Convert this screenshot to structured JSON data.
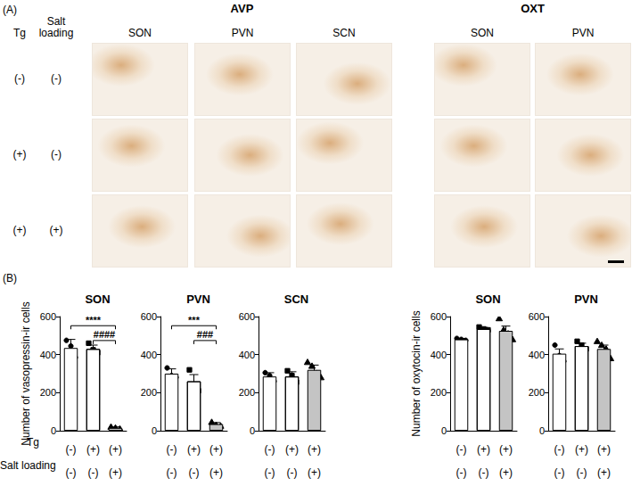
{
  "panel_a": {
    "label": "(A)",
    "groups": [
      {
        "title": "AVP",
        "columns": [
          "SON",
          "PVN",
          "SCN"
        ]
      },
      {
        "title": "OXT",
        "columns": [
          "SON",
          "PVN"
        ]
      }
    ],
    "row_headers": [
      "Tg",
      "Salt loading"
    ],
    "rows": [
      [
        "(-)",
        "(-)"
      ],
      [
        "(+)",
        "(-)"
      ],
      [
        "(+)",
        "(+)"
      ]
    ]
  },
  "panel_b_label": "(B)",
  "row_labels": [
    "Tg",
    "Salt loading"
  ],
  "chart_data": [
    {
      "type": "bar",
      "title": "SON",
      "y_label": "Number of vasopressin-ir cells",
      "categories": [
        [
          "(-)",
          "(-)"
        ],
        [
          "(+)",
          "(-)"
        ],
        [
          "(+)",
          "(+)"
        ]
      ],
      "values": [
        435,
        430,
        15
      ],
      "errors": [
        45,
        20,
        5
      ],
      "colors": [
        "#ffffff",
        "#ffffff",
        "#c4c4c4"
      ],
      "points": [
        {
          "marker": "circle",
          "values": [
            475,
            445,
            385
          ]
        },
        {
          "marker": "square",
          "values": [
            460,
            425,
            410
          ]
        },
        {
          "marker": "triangle",
          "values": [
            20,
            15,
            10
          ]
        }
      ],
      "annotations": [
        {
          "text": "****",
          "from": 0,
          "to": 2
        },
        {
          "text": "####",
          "from": 1,
          "to": 2
        }
      ],
      "ylim": [
        0,
        600
      ],
      "yticks": [
        0,
        200,
        400,
        600
      ]
    },
    {
      "type": "bar",
      "title": "PVN",
      "categories": [
        [
          "(-)",
          "(-)"
        ],
        [
          "(+)",
          "(-)"
        ],
        [
          "(+)",
          "(+)"
        ]
      ],
      "values": [
        300,
        260,
        35
      ],
      "errors": [
        25,
        35,
        8
      ],
      "colors": [
        "#ffffff",
        "#ffffff",
        "#c4c4c4"
      ],
      "points": [
        {
          "marker": "circle",
          "values": [
            330,
            290,
            280
          ]
        },
        {
          "marker": "square",
          "values": [
            320,
            240,
            210
          ]
        },
        {
          "marker": "triangle",
          "values": [
            45,
            30,
            25
          ]
        }
      ],
      "annotations": [
        {
          "text": "***",
          "from": 0,
          "to": 2
        },
        {
          "text": "###",
          "from": 1,
          "to": 2
        }
      ],
      "ylim": [
        0,
        600
      ],
      "yticks": [
        0,
        200,
        400,
        600
      ]
    },
    {
      "type": "bar",
      "title": "SCN",
      "categories": [
        [
          "(-)",
          "(-)"
        ],
        [
          "(+)",
          "(-)"
        ],
        [
          "(+)",
          "(+)"
        ]
      ],
      "values": [
        285,
        285,
        320
      ],
      "errors": [
        20,
        25,
        25
      ],
      "colors": [
        "#ffffff",
        "#ffffff",
        "#c4c4c4"
      ],
      "points": [
        {
          "marker": "circle",
          "values": [
            305,
            290,
            260
          ]
        },
        {
          "marker": "square",
          "values": [
            315,
            290,
            255
          ]
        },
        {
          "marker": "triangle",
          "values": [
            360,
            340,
            300,
            280
          ]
        }
      ],
      "annotations": [],
      "ylim": [
        0,
        600
      ],
      "yticks": [
        0,
        200,
        400,
        600
      ]
    },
    {
      "type": "bar",
      "title": "SON",
      "y_label": "Number of oxytocin-ir cells",
      "categories": [
        [
          "(-)",
          "(-)"
        ],
        [
          "(+)",
          "(-)"
        ],
        [
          "(+)",
          "(+)"
        ]
      ],
      "values": [
        480,
        535,
        525
      ],
      "errors": [
        5,
        8,
        25
      ],
      "colors": [
        "#ffffff",
        "#ffffff",
        "#c4c4c4"
      ],
      "points": [
        {
          "marker": "circle",
          "values": [
            485,
            480,
            475
          ]
        },
        {
          "marker": "square",
          "values": [
            545,
            535,
            530
          ]
        },
        {
          "marker": "triangle",
          "values": [
            590,
            530,
            510,
            480
          ]
        }
      ],
      "annotations": [],
      "ylim": [
        0,
        600
      ],
      "yticks": [
        0,
        200,
        400,
        600
      ]
    },
    {
      "type": "bar",
      "title": "PVN",
      "categories": [
        [
          "(-)",
          "(-)"
        ],
        [
          "(+)",
          "(-)"
        ],
        [
          "(+)",
          "(+)"
        ]
      ],
      "values": [
        405,
        445,
        430
      ],
      "errors": [
        25,
        15,
        20
      ],
      "colors": [
        "#ffffff",
        "#ffffff",
        "#c4c4c4"
      ],
      "points": [
        {
          "marker": "circle",
          "values": [
            450,
            395,
            365
          ]
        },
        {
          "marker": "square",
          "values": [
            470,
            450,
            430
          ]
        },
        {
          "marker": "triangle",
          "values": [
            470,
            450,
            430,
            380
          ]
        }
      ],
      "annotations": [],
      "ylim": [
        0,
        600
      ],
      "yticks": [
        0,
        200,
        400,
        600
      ]
    }
  ]
}
